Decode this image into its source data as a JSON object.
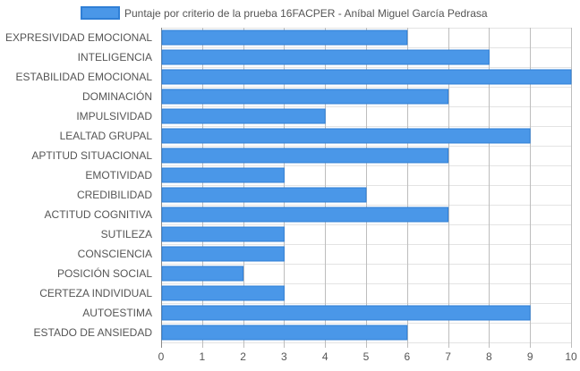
{
  "chart_data": {
    "type": "bar",
    "orientation": "horizontal",
    "categories": [
      "EXPRESIVIDAD EMOCIONAL",
      "INTELIGENCIA",
      "ESTABILIDAD EMOCIONAL",
      "DOMINACIÓN",
      "IMPULSIVIDAD",
      "LEALTAD GRUPAL",
      "APTITUD SITUACIONAL",
      "EMOTIVIDAD",
      "CREDIBILIDAD",
      "ACTITUD COGNITIVA",
      "SUTILEZA",
      "CONSCIENCIA",
      "POSICIÓN SOCIAL",
      "CERTEZA INDIVIDUAL",
      "AUTOESTIMA",
      "ESTADO DE ANSIEDAD"
    ],
    "series": [
      {
        "name": "Puntaje por criterio de la prueba 16FACPER - Aníbal Miguel García Pedrasa",
        "values": [
          6,
          8,
          10,
          7,
          4,
          9,
          7,
          3,
          5,
          7,
          3,
          3,
          2,
          3,
          9,
          6
        ]
      }
    ],
    "xlim": [
      0,
      10
    ],
    "x_ticks": [
      "0",
      "1",
      "2",
      "3",
      "4",
      "5",
      "6",
      "7",
      "8",
      "9",
      "10"
    ],
    "grid": true,
    "legend_position": "top",
    "colors": {
      "bar_fill": "#4a97e8",
      "bar_stroke": "#2f7fd6",
      "grid": "#e3e3e3",
      "grid_major": "#bdbdbd",
      "text": "#555555"
    }
  }
}
